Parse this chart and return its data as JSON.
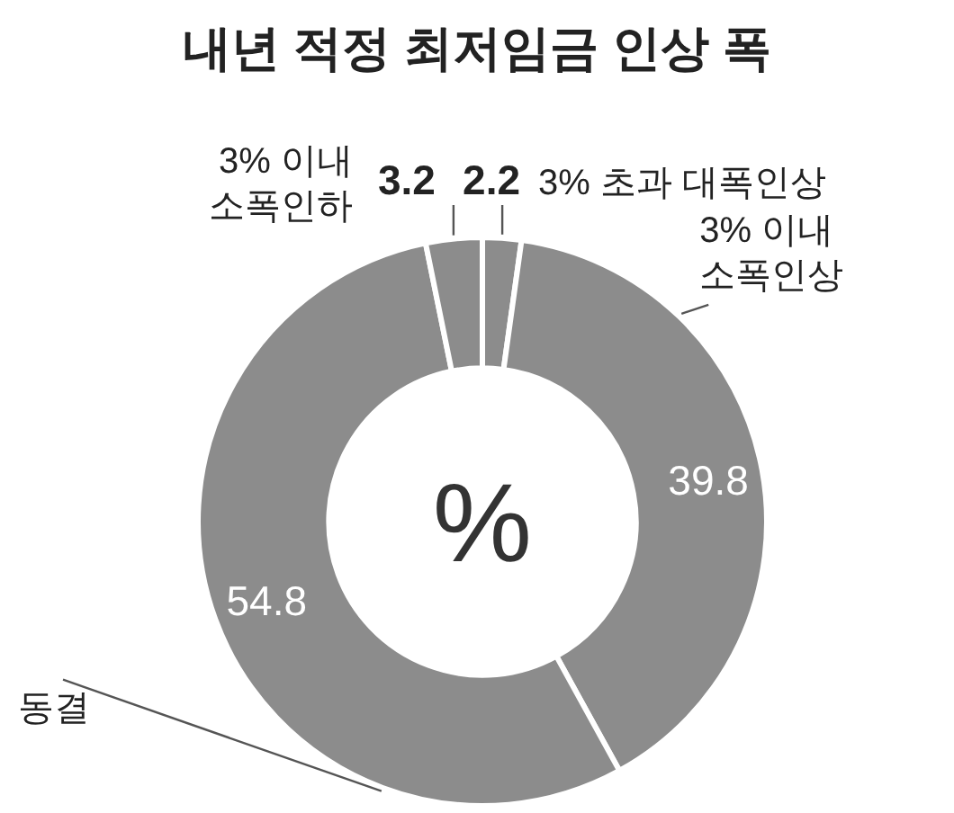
{
  "chart_data": {
    "type": "donut",
    "title": "내년 적정 최저임금 인상 폭",
    "categories": [
      "3% 초과 대폭인상",
      "3% 이내 소폭인상",
      "동결",
      "3% 이내 소폭인하"
    ],
    "values": [
      2.2,
      39.8,
      54.8,
      3.2
    ],
    "colors": [
      "#8c8c8c",
      "#8c8c8c",
      "#8c8c8c",
      "#8c8c8c"
    ],
    "data_labels": true,
    "annotations": [
      "%"
    ]
  }
}
